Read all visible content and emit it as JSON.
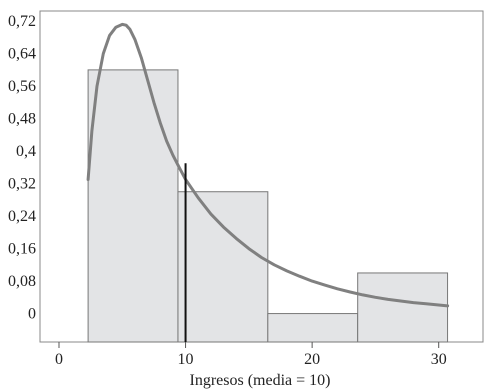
{
  "chart_data": {
    "type": "bar",
    "title": "",
    "xlabel": "Ingresos (media = 10)",
    "ylabel": "",
    "xlim": [
      -1.5,
      33.5
    ],
    "ylim": [
      -0.07,
      0.745
    ],
    "x_ticks": [
      0,
      10,
      20,
      30
    ],
    "y_ticks": [
      0,
      0.08,
      0.16,
      0.24,
      0.32,
      0.4,
      0.48,
      0.56,
      0.64,
      0.72
    ],
    "y_tick_labels": [
      "0",
      "0,08",
      "0,16",
      "0,24",
      "0,32",
      "0,4",
      "0,48",
      "0,56",
      "0,64",
      "0,72"
    ],
    "baseline": -0.07,
    "bars": [
      {
        "x0": 2.3,
        "x1": 9.4,
        "value": 0.6
      },
      {
        "x0": 9.4,
        "x1": 16.5,
        "value": 0.3
      },
      {
        "x0": 16.5,
        "x1": 23.6,
        "value": 0.0
      },
      {
        "x0": 23.6,
        "x1": 30.7,
        "value": 0.1
      }
    ],
    "series": [
      {
        "type": "line",
        "x": [
          2.3,
          2.6,
          3.0,
          3.5,
          4.0,
          4.5,
          5.0,
          5.3,
          5.6,
          6.0,
          6.5,
          7.0,
          7.5,
          8.0,
          8.5,
          9.0,
          9.5,
          10.0,
          11.0,
          12.0,
          13.0,
          14.0,
          15.0,
          16.0,
          17.0,
          18.0,
          19.0,
          20.0,
          21.0,
          22.0,
          23.0,
          24.0,
          25.0,
          26.0,
          27.0,
          28.0,
          29.0,
          30.0,
          30.7
        ],
        "y": [
          0.33,
          0.45,
          0.56,
          0.64,
          0.685,
          0.705,
          0.712,
          0.71,
          0.7,
          0.675,
          0.63,
          0.575,
          0.52,
          0.47,
          0.425,
          0.39,
          0.36,
          0.33,
          0.285,
          0.245,
          0.213,
          0.185,
          0.16,
          0.138,
          0.12,
          0.105,
          0.092,
          0.08,
          0.07,
          0.061,
          0.053,
          0.046,
          0.04,
          0.035,
          0.031,
          0.027,
          0.024,
          0.021,
          0.019
        ]
      }
    ],
    "mean_line": {
      "x": 10,
      "y_top": 0.37
    },
    "colors": {
      "bar_fill": "#e3e4e6",
      "bar_stroke": "#777777",
      "curve": "#808080",
      "mean_line": "#111111",
      "axis": "#555555"
    },
    "grid": false
  }
}
